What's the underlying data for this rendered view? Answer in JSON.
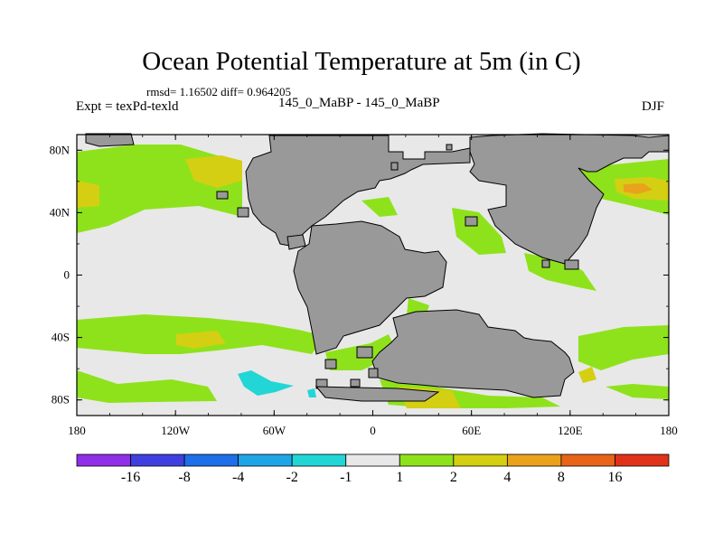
{
  "chart_data": {
    "type": "heatmap",
    "title": "Ocean Potential Temperature at 5m (in C)",
    "stats": "rmsd= 1.16502  diff= 0.964205",
    "left_label": "Expt = texPd-texld",
    "center_label": "145_0_MaBP - 145_0_MaBP",
    "right_label": "DJF",
    "x_axis": {
      "range": [
        -180,
        180
      ],
      "ticks": [
        {
          "value": -180,
          "label": "180"
        },
        {
          "value": -120,
          "label": "120W"
        },
        {
          "value": -60,
          "label": "60W"
        },
        {
          "value": 0,
          "label": "0"
        },
        {
          "value": 60,
          "label": "60E"
        },
        {
          "value": 120,
          "label": "120E"
        },
        {
          "value": 180,
          "label": "180"
        }
      ]
    },
    "y_axis": {
      "range": [
        -90,
        90
      ],
      "ticks": [
        {
          "value": 80,
          "label": "80N"
        },
        {
          "value": 40,
          "label": "40N"
        },
        {
          "value": 0,
          "label": "0"
        },
        {
          "value": -40,
          "label": "40S"
        },
        {
          "value": -80,
          "label": "80S"
        }
      ]
    },
    "colorbar": {
      "colors": [
        "#8f2fe8",
        "#3f3fe0",
        "#1e6fe8",
        "#1fa5e6",
        "#22d6d6",
        "#e8e8e8",
        "#8ee21b",
        "#d4cf12",
        "#e8a21c",
        "#e86418",
        "#e0321a"
      ],
      "labels": [
        "-16",
        "-8",
        "-4",
        "-2",
        "-1",
        "1",
        "2",
        "4",
        "8",
        "16"
      ]
    },
    "land_color": "#999999",
    "ocean_background": "#e8e8e8",
    "regions": [
      {
        "level": "1 to 2",
        "color": "#8ee21b",
        "description": "warming bands mid-latitudes"
      },
      {
        "level": "2 to 4",
        "color": "#d4cf12",
        "description": "warmer patches"
      },
      {
        "level": "4 to 8",
        "color": "#e8a21c",
        "description": "strongest warming NW Pacific"
      },
      {
        "level": "-2 to -1",
        "color": "#22d6d6",
        "description": "cooling patch South Pacific"
      }
    ]
  }
}
